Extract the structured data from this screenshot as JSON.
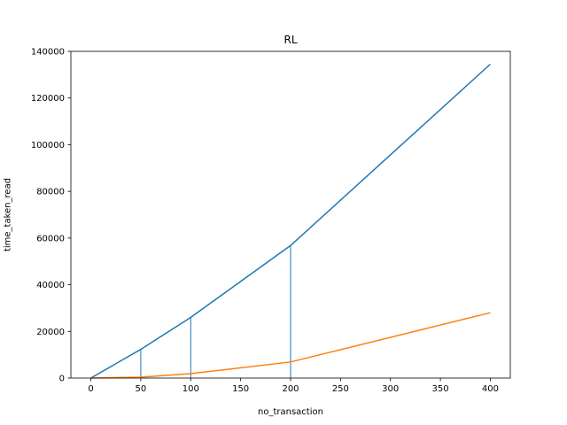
{
  "chart_data": {
    "type": "line",
    "title": "RL",
    "xlabel": "no_transaction",
    "ylabel": "time_taken_read",
    "xlim": [
      -20,
      420
    ],
    "ylim": [
      0,
      140000
    ],
    "x_ticks": [
      0,
      50,
      100,
      150,
      200,
      250,
      300,
      350,
      400
    ],
    "y_ticks": [
      0,
      20000,
      40000,
      60000,
      80000,
      100000,
      120000,
      140000
    ],
    "grid": false,
    "series": [
      {
        "color": "#1f77b4",
        "x": [
          0,
          50,
          100,
          200,
          400
        ],
        "values": [
          0,
          12300,
          26000,
          56800,
          134500
        ]
      },
      {
        "color": "#ff7f0e",
        "x": [
          0,
          50,
          100,
          200,
          400
        ],
        "values": [
          0,
          400,
          1900,
          6900,
          28000
        ]
      }
    ],
    "vlines": {
      "color": "#1f77b4",
      "x": [
        50,
        100,
        200
      ],
      "values": [
        12300,
        26000,
        56800
      ]
    }
  }
}
